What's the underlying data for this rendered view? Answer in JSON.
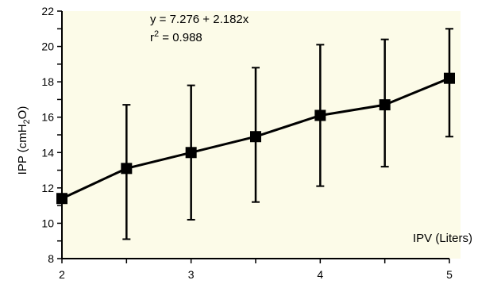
{
  "chart_data": {
    "type": "line",
    "title": "",
    "xlabel": "IPV (Liters)",
    "ylabel": {
      "prefix": "IPP (cmH",
      "sub": "2",
      "suffix": "O)"
    },
    "xlim": [
      2,
      5
    ],
    "ylim": [
      8,
      22
    ],
    "x_ticks": [
      2,
      2.5,
      3,
      3.5,
      4,
      4.5,
      5
    ],
    "x_tick_labels": [
      {
        "value": 2,
        "label": "2"
      },
      {
        "value": 3,
        "label": "3"
      },
      {
        "value": 4,
        "label": "4"
      },
      {
        "value": 5,
        "label": "5"
      }
    ],
    "y_ticks": [
      8,
      9,
      10,
      11,
      12,
      13,
      14,
      15,
      16,
      17,
      18,
      19,
      20,
      21,
      22
    ],
    "y_tick_labels": [
      {
        "value": 8,
        "label": "8"
      },
      {
        "value": 10,
        "label": "10"
      },
      {
        "value": 12,
        "label": "12"
      },
      {
        "value": 14,
        "label": "14"
      },
      {
        "value": 16,
        "label": "16"
      },
      {
        "value": 18,
        "label": "18"
      },
      {
        "value": 20,
        "label": "20"
      },
      {
        "value": 22,
        "label": "22"
      }
    ],
    "grid": false,
    "background_color": "#fcfbe8",
    "line_color": "#000000",
    "series": [
      {
        "points": [
          {
            "x": 2.0,
            "y": 11.4,
            "err_low": 11.4,
            "err_high": 11.4
          },
          {
            "x": 2.5,
            "y": 13.1,
            "err_low": 9.1,
            "err_high": 16.7
          },
          {
            "x": 3.0,
            "y": 14.0,
            "err_low": 10.2,
            "err_high": 17.8
          },
          {
            "x": 3.5,
            "y": 14.9,
            "err_low": 11.2,
            "err_high": 18.8
          },
          {
            "x": 4.0,
            "y": 16.1,
            "err_low": 12.1,
            "err_high": 20.1
          },
          {
            "x": 4.5,
            "y": 16.7,
            "err_low": 13.2,
            "err_high": 20.4
          },
          {
            "x": 5.0,
            "y": 18.2,
            "err_low": 14.9,
            "err_high": 21.0
          }
        ]
      }
    ],
    "annotations": {
      "equation": "y = 7.276 + 2.182x",
      "r2_prefix": "r",
      "r2_sup": "2",
      "r2_suffix": " = 0.988"
    }
  }
}
